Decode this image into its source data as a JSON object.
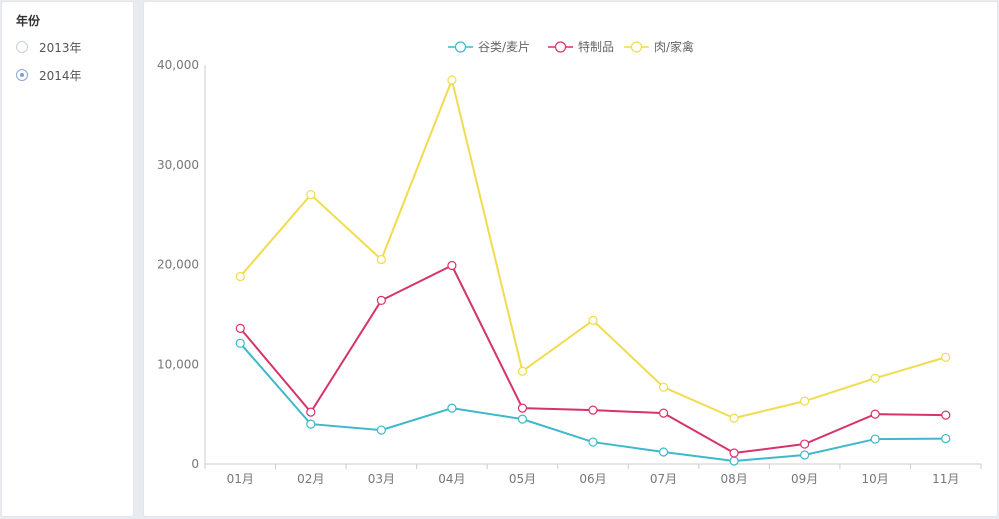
{
  "filter": {
    "title": "年份",
    "options": [
      {
        "label": "2013年",
        "selected": false
      },
      {
        "label": "2014年",
        "selected": true
      }
    ]
  },
  "chart_data": {
    "type": "line",
    "categories": [
      "01月",
      "02月",
      "03月",
      "04月",
      "05月",
      "06月",
      "07月",
      "08月",
      "09月",
      "10月",
      "11月"
    ],
    "ylim": [
      0,
      40000
    ],
    "yticks": [
      0,
      10000,
      20000,
      30000,
      40000
    ],
    "ytick_labels": [
      "0",
      "10,000",
      "20,000",
      "30,000",
      "40,000"
    ],
    "legend_position": "top-center",
    "grid": false,
    "series": [
      {
        "name": "谷类/麦片",
        "color": "#3fb8cc",
        "values": [
          12100,
          4000,
          3400,
          5600,
          4500,
          2200,
          1200,
          300,
          900,
          2500,
          2550
        ]
      },
      {
        "name": "特制品",
        "color": "#d6336c",
        "values": [
          13600,
          5200,
          16400,
          19900,
          5600,
          5400,
          5100,
          1100,
          2000,
          5000,
          4900
        ]
      },
      {
        "name": "肉/家禽",
        "color": "#f0dc4e",
        "values": [
          18800,
          27000,
          20500,
          38500,
          9300,
          14400,
          7700,
          4600,
          6300,
          8600,
          10700
        ]
      }
    ]
  }
}
